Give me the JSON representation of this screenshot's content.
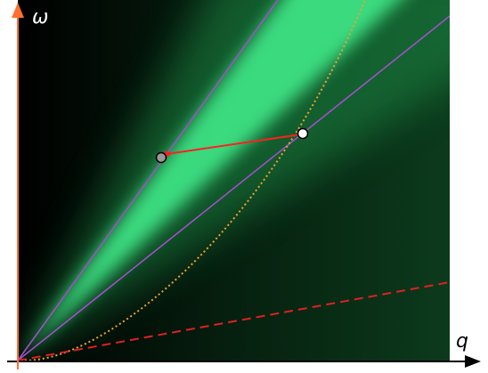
{
  "axes": {
    "y_label": "ω",
    "x_label": "q"
  }
}
